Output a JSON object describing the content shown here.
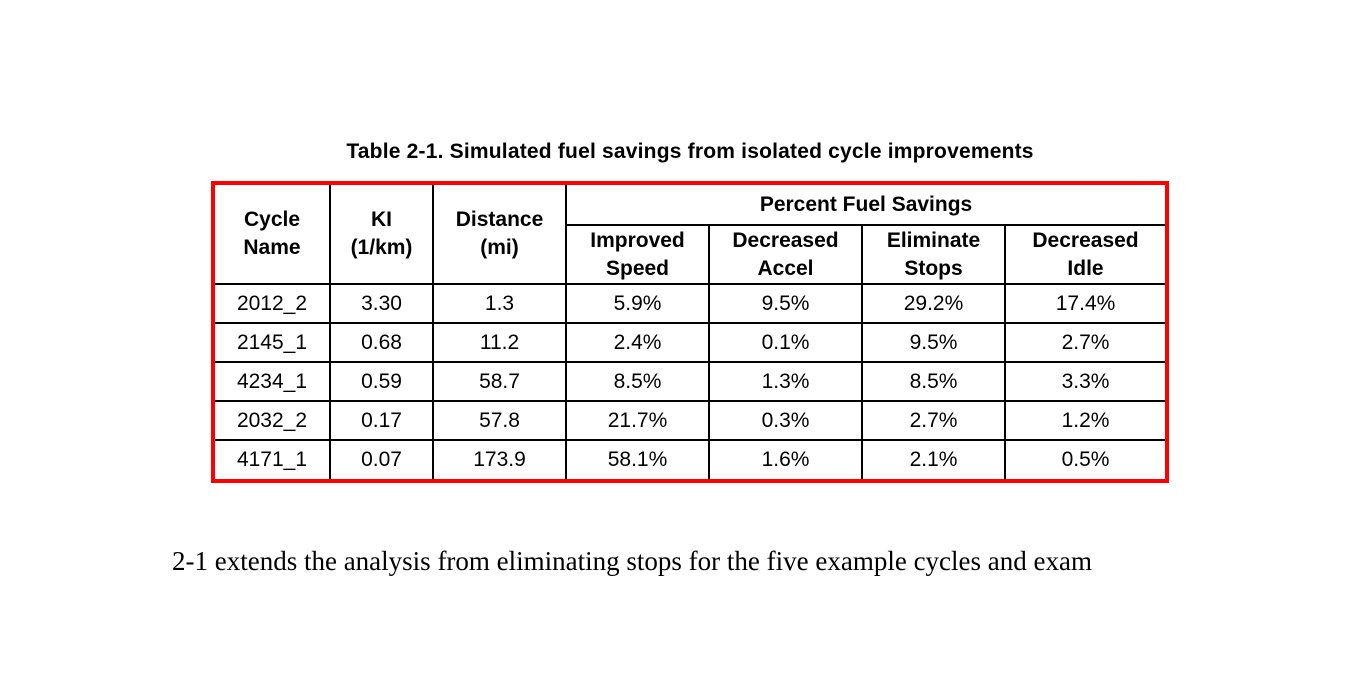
{
  "caption": "Table 2-1. Simulated fuel savings from isolated cycle improvements",
  "table": {
    "header": {
      "cycle_name": "Cycle\nName",
      "ki": "KI\n(1/km)",
      "distance": "Distance\n(mi)",
      "group": "Percent Fuel Savings",
      "sub": [
        "Improved\nSpeed",
        "Decreased\nAccel",
        "Eliminate\nStops",
        "Decreased\nIdle"
      ]
    },
    "columns": [
      "cycle",
      "ki",
      "distance",
      "improved_speed",
      "decreased_accel",
      "eliminate_stops",
      "decreased_idle"
    ],
    "rows": [
      {
        "cycle": "2012_2",
        "ki": "3.30",
        "distance": "1.3",
        "improved_speed": "5.9%",
        "decreased_accel": "9.5%",
        "eliminate_stops": "29.2%",
        "decreased_idle": "17.4%"
      },
      {
        "cycle": "2145_1",
        "ki": "0.68",
        "distance": "11.2",
        "improved_speed": "2.4%",
        "decreased_accel": "0.1%",
        "eliminate_stops": "9.5%",
        "decreased_idle": "2.7%"
      },
      {
        "cycle": "4234_1",
        "ki": "0.59",
        "distance": "58.7",
        "improved_speed": "8.5%",
        "decreased_accel": "1.3%",
        "eliminate_stops": "8.5%",
        "decreased_idle": "3.3%"
      },
      {
        "cycle": "2032_2",
        "ki": "0.17",
        "distance": "57.8",
        "improved_speed": "21.7%",
        "decreased_accel": "0.3%",
        "eliminate_stops": "2.7%",
        "decreased_idle": "1.2%"
      },
      {
        "cycle": "4171_1",
        "ki": "0.07",
        "distance": "173.9",
        "improved_speed": "58.1%",
        "decreased_accel": "1.6%",
        "eliminate_stops": "2.1%",
        "decreased_idle": "0.5%"
      }
    ]
  },
  "paragraph": "2-1 extends the analysis from eliminating stops for the five example cycles and exam",
  "colors": {
    "table_border": "#ff0000",
    "grid": "#000000",
    "text": "#000000",
    "background": "#ffffff"
  }
}
